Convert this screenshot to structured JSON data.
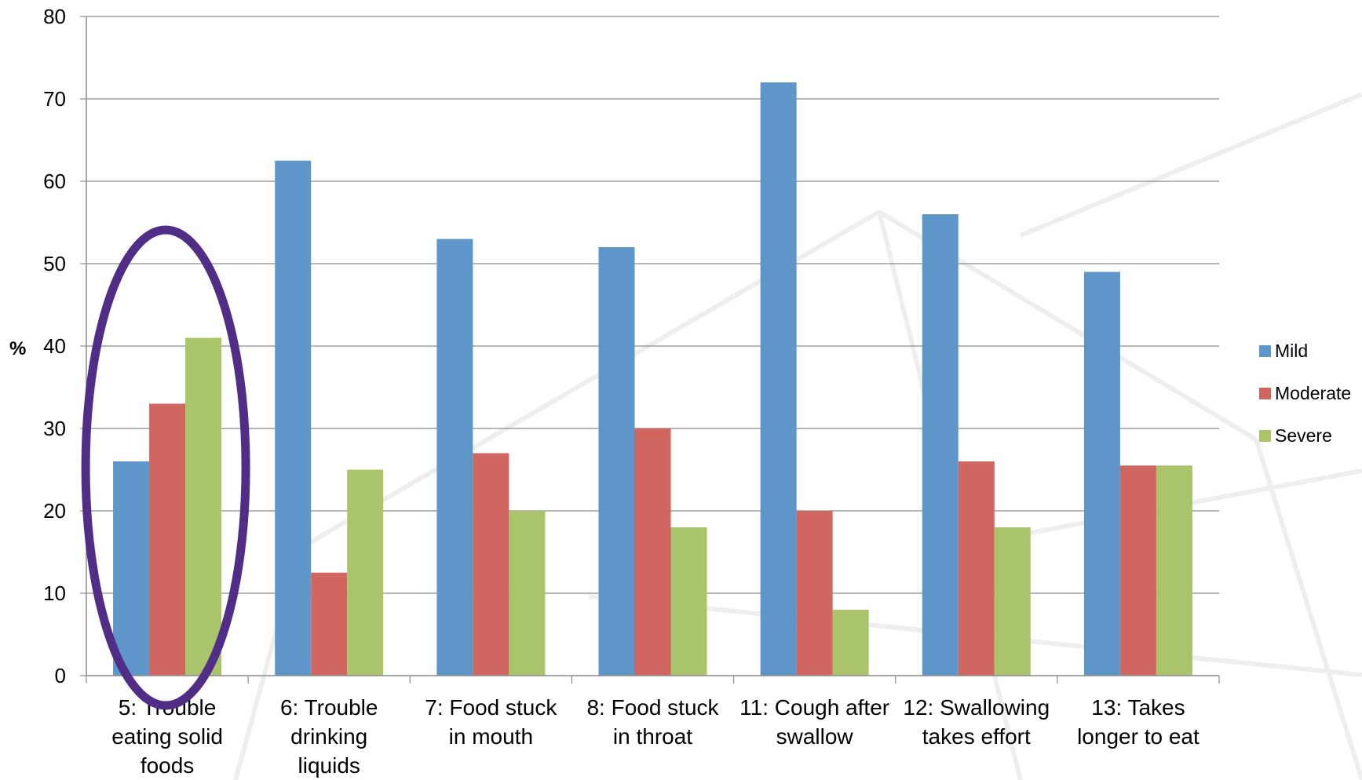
{
  "chart_data": {
    "type": "bar",
    "title": "",
    "xlabel": "",
    "ylabel": "%",
    "ylim": [
      0,
      80
    ],
    "yticks": [
      0,
      10,
      20,
      30,
      40,
      50,
      60,
      70,
      80
    ],
    "grid": true,
    "legend_position": "right",
    "categories": [
      [
        "5: Trouble",
        "eating solid",
        "foods"
      ],
      [
        "6: Trouble",
        "drinking",
        "liquids"
      ],
      [
        "7: Food stuck",
        "in mouth"
      ],
      [
        "8: Food stuck",
        "in throat"
      ],
      [
        "11: Cough after",
        "swallow"
      ],
      [
        "12: Swallowing",
        "takes effort"
      ],
      [
        "13: Takes",
        "longer to eat"
      ]
    ],
    "series": [
      {
        "name": "Mild",
        "color": "#5f96c9",
        "values": [
          26,
          62.5,
          53,
          52,
          72,
          56,
          49
        ]
      },
      {
        "name": "Moderate",
        "color": "#cf6660",
        "values": [
          33,
          12.5,
          27,
          30,
          20,
          26,
          25.5
        ]
      },
      {
        "name": "Severe",
        "color": "#a9c46a",
        "values": [
          41,
          25,
          20,
          18,
          8,
          18,
          25.5
        ]
      }
    ],
    "annotations": [
      {
        "shape": "ellipse",
        "color": "#502d86",
        "category_index": 0,
        "y_range": [
          0,
          52
        ]
      }
    ]
  }
}
